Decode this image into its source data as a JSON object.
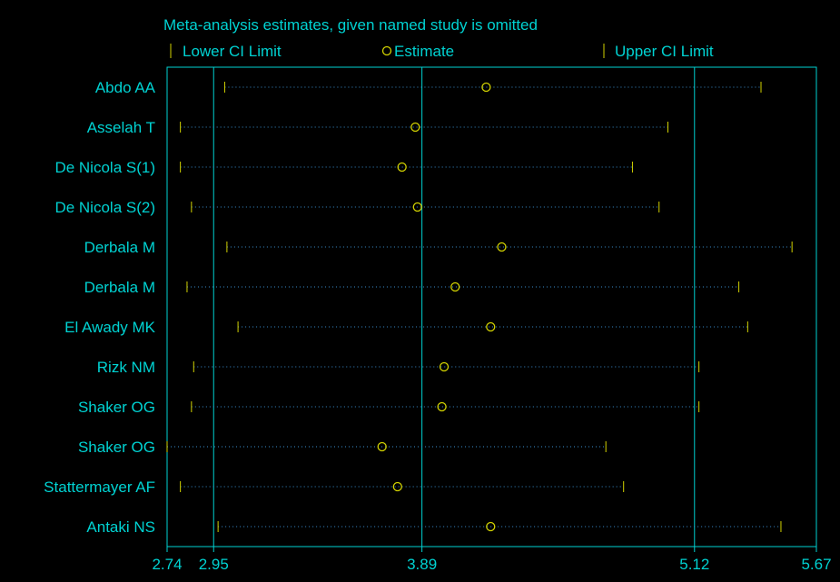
{
  "colors": {
    "background": "#000000",
    "accent": "#00d2d2",
    "marker": "#d2d200",
    "dots": "#3a8fd0"
  },
  "chart_data": {
    "type": "scatter",
    "title": "Meta-analysis estimates, given named study is omitted",
    "legend": {
      "placement": "top",
      "lower": "Lower CI Limit",
      "estimate": "Estimate",
      "upper": "Upper CI Limit"
    },
    "x_range": [
      2.74,
      5.67
    ],
    "x_ticks": [
      "2.74",
      "2.95",
      "3.89",
      "5.12",
      "5.67"
    ],
    "reference_lines": [
      2.95,
      3.89,
      5.12
    ],
    "studies": [
      {
        "label": "Abdo AA",
        "lower": 3.0,
        "estimate": 4.18,
        "upper": 5.42
      },
      {
        "label": "Asselah T",
        "lower": 2.8,
        "estimate": 3.86,
        "upper": 5.0
      },
      {
        "label": "De Nicola S(1)",
        "lower": 2.8,
        "estimate": 3.8,
        "upper": 4.84
      },
      {
        "label": "De Nicola S(2)",
        "lower": 2.85,
        "estimate": 3.87,
        "upper": 4.96
      },
      {
        "label": "Derbala M",
        "lower": 3.01,
        "estimate": 4.25,
        "upper": 5.56
      },
      {
        "label": "Derbala M",
        "lower": 2.83,
        "estimate": 4.04,
        "upper": 5.32
      },
      {
        "label": "El Awady MK",
        "lower": 3.06,
        "estimate": 4.2,
        "upper": 5.36
      },
      {
        "label": "Rizk NM",
        "lower": 2.86,
        "estimate": 3.99,
        "upper": 5.14
      },
      {
        "label": "Shaker OG",
        "lower": 2.85,
        "estimate": 3.98,
        "upper": 5.14
      },
      {
        "label": "Shaker OG",
        "lower": 2.74,
        "estimate": 3.71,
        "upper": 4.72
      },
      {
        "label": "Stattermayer AF",
        "lower": 2.8,
        "estimate": 3.78,
        "upper": 4.8
      },
      {
        "label": "Antaki NS",
        "lower": 2.97,
        "estimate": 4.2,
        "upper": 5.51
      }
    ]
  }
}
